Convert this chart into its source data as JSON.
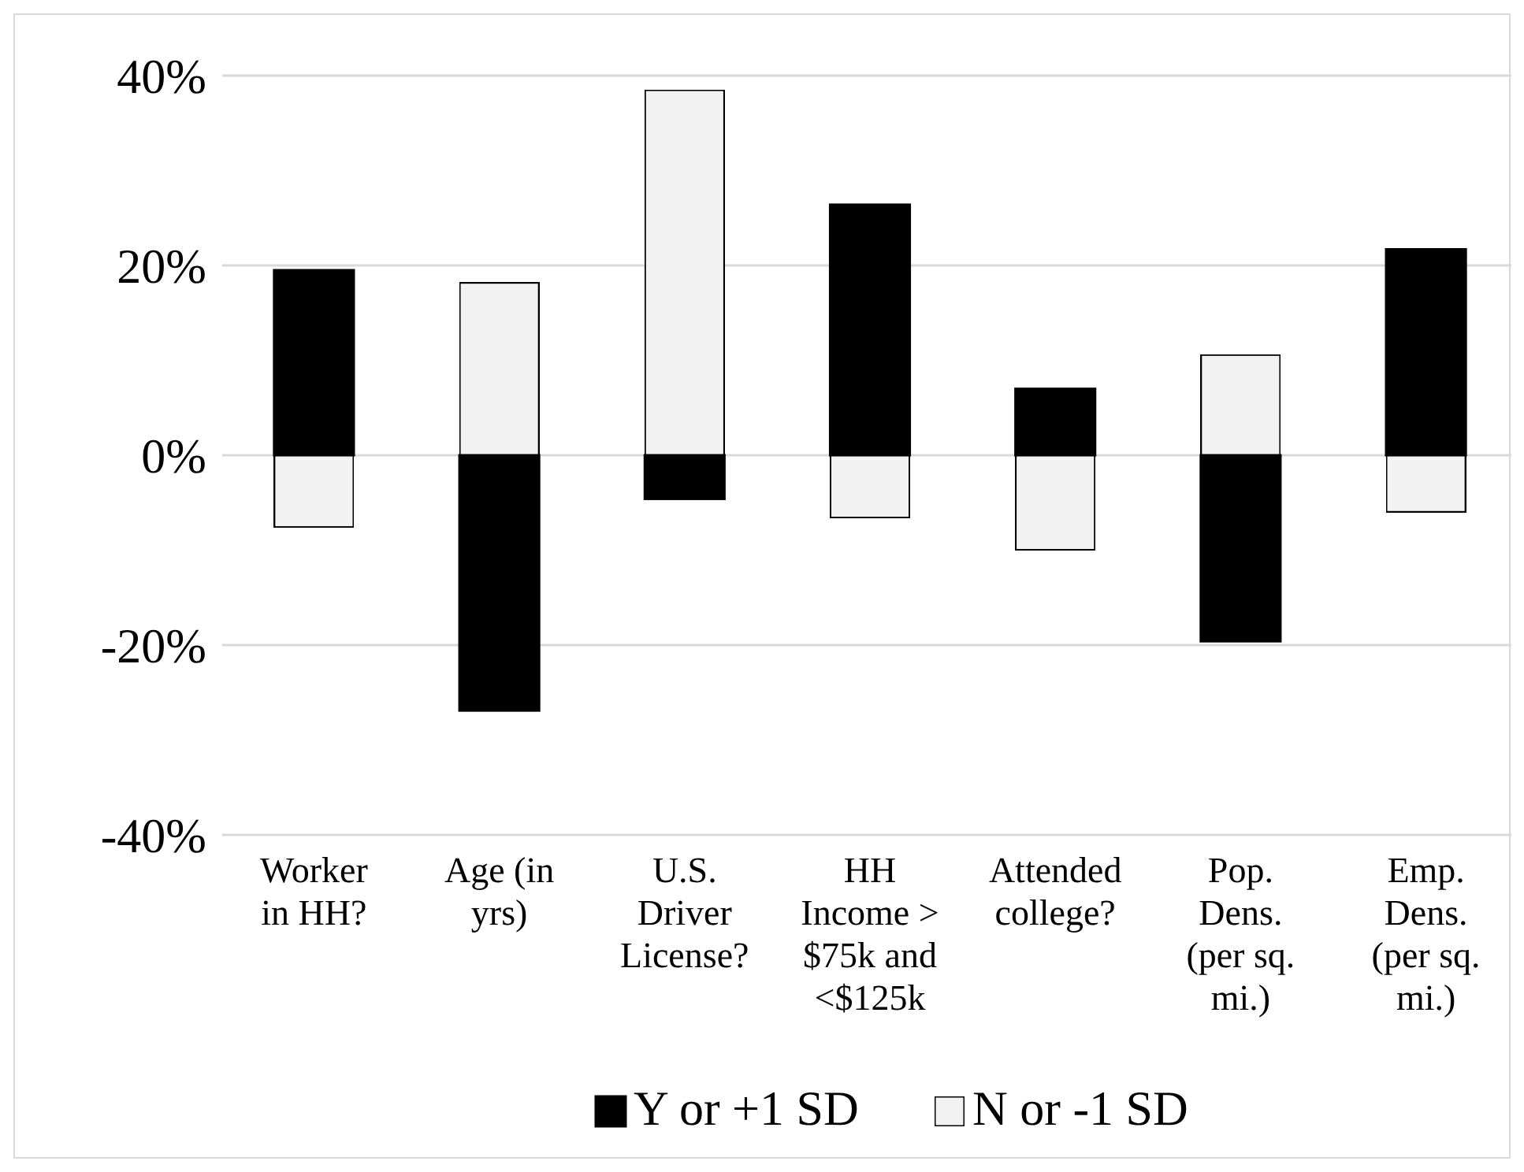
{
  "chart_data": {
    "type": "bar",
    "stacked": true,
    "categories": [
      "Worker in HH?",
      "Age (in yrs)",
      "U.S. Driver License?",
      "HH Income > $75k and <$125k",
      "Attended college?",
      "Pop. Dens. (per sq. mi.)",
      "Emp. Dens. (per sq. mi.)"
    ],
    "series": [
      {
        "name": "Y or +1 SD",
        "color": "#000000",
        "values": [
          19.5,
          -26.9,
          -4.6,
          26.4,
          7.0,
          -19.6,
          21.7
        ]
      },
      {
        "name": "N or -1 SD",
        "color": "#f2f2f2",
        "values": [
          -7.6,
          18.2,
          38.5,
          -6.6,
          -10.0,
          10.6,
          -6.0
        ]
      }
    ],
    "ylim": [
      -40,
      40
    ],
    "yticks": [
      {
        "value": -40,
        "label": "-40%"
      },
      {
        "value": -20,
        "label": "-20%"
      },
      {
        "value": 0,
        "label": "0%"
      },
      {
        "value": 20,
        "label": "20%"
      },
      {
        "value": 40,
        "label": "40%"
      }
    ],
    "grid": "y",
    "legend": "bottom"
  }
}
